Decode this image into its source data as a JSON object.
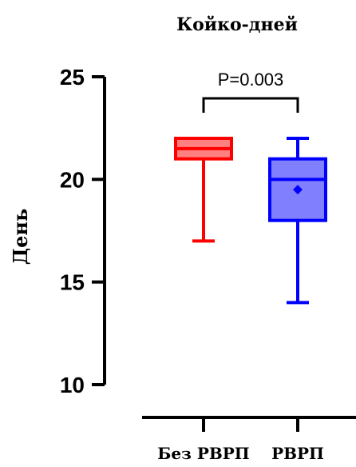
{
  "chart_data": {
    "type": "box",
    "title": "Койко-дней",
    "xlabel": "",
    "ylabel": "День",
    "ylim": [
      10,
      25
    ],
    "yticks": [
      "10",
      "15",
      "20",
      "25"
    ],
    "categories": [
      "Без РВРП",
      "РВРП"
    ],
    "series": [
      {
        "color": "#ff0000",
        "fill": "#ff8080",
        "min": 17,
        "q1": 21,
        "median": 21.5,
        "q3": 22,
        "max": 22
      },
      {
        "color": "#0000ff",
        "fill": "#8080ff",
        "min": 14,
        "q1": 18,
        "median": 20,
        "q3": 21,
        "max": 22,
        "mean": 19.5
      }
    ],
    "annotation": "P=0.003",
    "grid": false
  }
}
